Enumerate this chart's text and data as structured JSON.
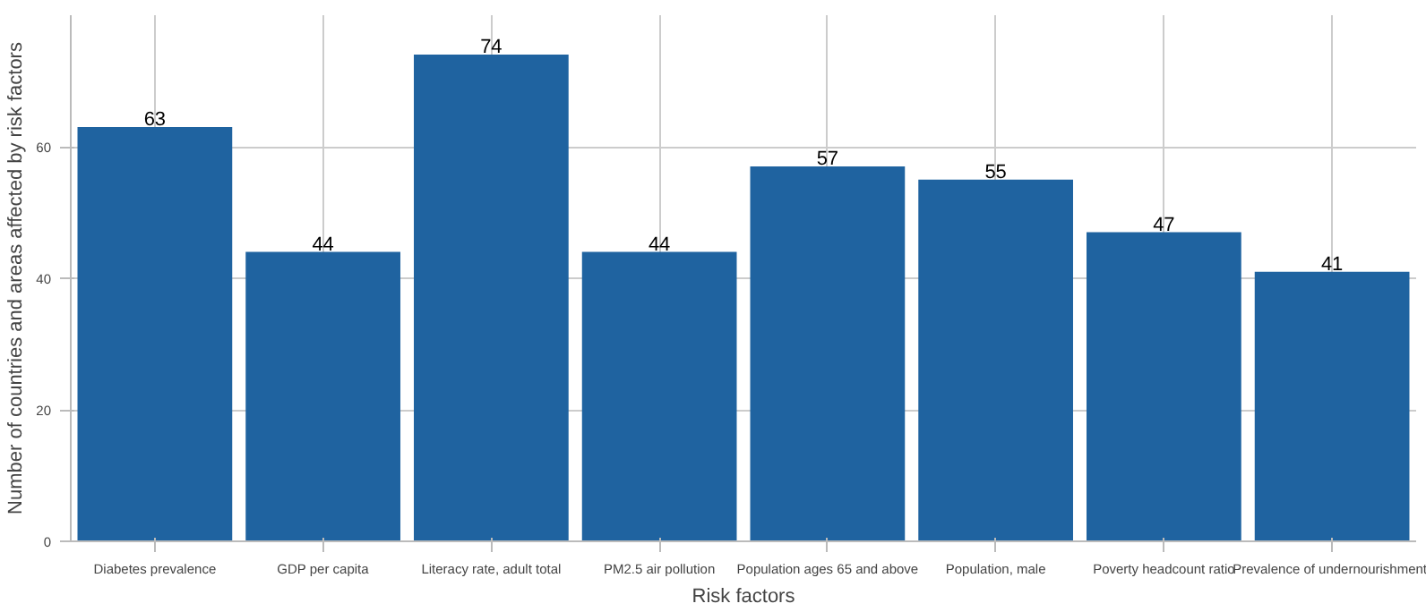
{
  "chart_data": {
    "type": "bar",
    "xlabel": "Risk factors",
    "ylabel": "Number of countries and areas affected by risk factors",
    "categories": [
      "Diabetes prevalence",
      "GDP per capita",
      "Literacy rate, adult total",
      "PM2.5 air pollution",
      "Population ages 65 and above",
      "Population, male",
      "Poverty headcount ratio",
      "Prevalence of undernourishment"
    ],
    "values": [
      63,
      44,
      74,
      44,
      57,
      55,
      47,
      41
    ],
    "color": "#1f63a0",
    "ylim": [
      0,
      80
    ],
    "yticks": [
      0,
      20,
      40,
      60
    ],
    "grid": true,
    "data_labels": true
  }
}
